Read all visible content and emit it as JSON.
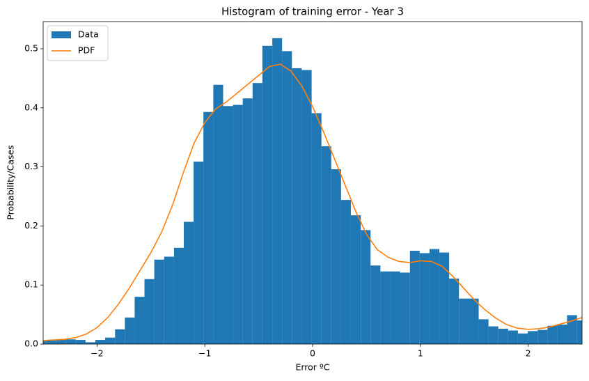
{
  "chart_data": {
    "type": "histogram",
    "title": "Histogram of training error - Year 3",
    "xlabel": "Error ºC",
    "ylabel": "Probability/Cases",
    "xlim": [
      -2.5,
      2.5
    ],
    "ylim": [
      0,
      0.546
    ],
    "xticks": [
      {
        "value": -2,
        "label": "−2"
      },
      {
        "value": -1,
        "label": "−1"
      },
      0,
      1,
      2
    ],
    "yticks": [
      {
        "value": 0,
        "label": "0.0"
      },
      0.1,
      0.2,
      0.3,
      0.4,
      0.5
    ],
    "legend": "upper left",
    "series": [
      {
        "name": "Data",
        "type": "histogram",
        "color": "#1f77b4",
        "bins": [
          -2.563,
          -2.472,
          -2.38,
          -2.289,
          -2.198,
          -2.107,
          -2.016,
          -1.925,
          -1.833,
          -1.742,
          -1.651,
          -1.56,
          -1.469,
          -1.377,
          -1.286,
          -1.195,
          -1.104,
          -1.013,
          -0.921,
          -0.83,
          -0.739,
          -0.648,
          -0.557,
          -0.466,
          -0.374,
          -0.283,
          -0.192,
          -0.101,
          -0.009,
          0.082,
          0.173,
          0.264,
          0.355,
          0.447,
          0.538,
          0.629,
          0.72,
          0.811,
          0.903,
          0.994,
          1.085,
          1.176,
          1.267,
          1.358,
          1.45,
          1.541,
          1.632,
          1.723,
          1.814,
          1.905,
          1.997,
          2.088,
          2.179,
          2.27,
          2.361,
          2.453,
          2.544
        ],
        "values": [
          0.005,
          0.006,
          0.007,
          0.008,
          0.007,
          0.003,
          0.007,
          0.011,
          0.025,
          0.045,
          0.08,
          0.11,
          0.143,
          0.148,
          0.163,
          0.207,
          0.309,
          0.393,
          0.439,
          0.403,
          0.405,
          0.416,
          0.442,
          0.505,
          0.518,
          0.496,
          0.467,
          0.464,
          0.391,
          0.335,
          0.296,
          0.244,
          0.218,
          0.193,
          0.133,
          0.123,
          0.123,
          0.121,
          0.158,
          0.154,
          0.161,
          0.155,
          0.111,
          0.077,
          0.077,
          0.042,
          0.03,
          0.026,
          0.023,
          0.018,
          0.022,
          0.024,
          0.031,
          0.033,
          0.049,
          0.04
        ]
      },
      {
        "name": "PDF",
        "type": "line",
        "color": "#ff7f0e",
        "x": [
          -2.5,
          -2.4,
          -2.3,
          -2.2,
          -2.1,
          -2.0,
          -1.9,
          -1.8,
          -1.7,
          -1.6,
          -1.5,
          -1.4,
          -1.3,
          -1.2,
          -1.1,
          -1.0,
          -0.9,
          -0.8,
          -0.7,
          -0.6,
          -0.5,
          -0.4,
          -0.3,
          -0.2,
          -0.1,
          0.0,
          0.1,
          0.2,
          0.3,
          0.4,
          0.5,
          0.6,
          0.7,
          0.8,
          0.9,
          1.0,
          1.1,
          1.2,
          1.3,
          1.4,
          1.5,
          1.6,
          1.7,
          1.8,
          1.9,
          2.0,
          2.1,
          2.2,
          2.3,
          2.4,
          2.5
        ],
        "values": [
          0.006,
          0.007,
          0.008,
          0.011,
          0.017,
          0.028,
          0.045,
          0.068,
          0.095,
          0.125,
          0.155,
          0.19,
          0.235,
          0.29,
          0.34,
          0.375,
          0.398,
          0.41,
          0.425,
          0.44,
          0.455,
          0.47,
          0.474,
          0.462,
          0.437,
          0.402,
          0.36,
          0.315,
          0.27,
          0.225,
          0.186,
          0.16,
          0.147,
          0.14,
          0.138,
          0.141,
          0.14,
          0.132,
          0.115,
          0.095,
          0.075,
          0.058,
          0.044,
          0.033,
          0.027,
          0.025,
          0.026,
          0.029,
          0.034,
          0.039,
          0.045
        ]
      }
    ]
  }
}
